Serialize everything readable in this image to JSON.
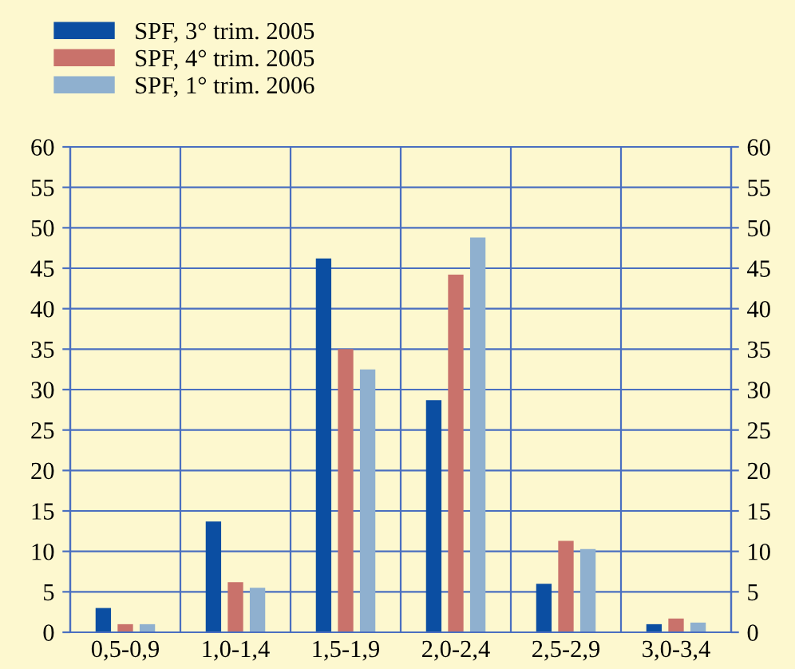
{
  "chart_data": {
    "type": "bar",
    "categories": [
      "0,5-0,9",
      "1,0-1,4",
      "1,5-1,9",
      "2,0-2,4",
      "2,5-2,9",
      "3,0-3,4"
    ],
    "series": [
      {
        "name": "SPF, 3° trim. 2005",
        "color": "#0b4ea2",
        "values": [
          3.0,
          13.7,
          46.2,
          28.7,
          6.0,
          1.0
        ]
      },
      {
        "name": "SPF, 4° trim. 2005",
        "color": "#c9726b",
        "values": [
          1.0,
          6.2,
          35.0,
          44.2,
          11.3,
          1.7
        ]
      },
      {
        "name": "SPF, 1° trim. 2006",
        "color": "#8fb0cf",
        "values": [
          1.0,
          5.5,
          32.5,
          48.8,
          10.3,
          1.2
        ]
      }
    ],
    "ylim": [
      0,
      60
    ],
    "yticks": [
      0,
      5,
      10,
      15,
      20,
      25,
      30,
      35,
      40,
      45,
      50,
      55,
      60
    ],
    "y2lim": [
      0,
      60
    ],
    "y2ticks": [
      0,
      5,
      10,
      15,
      20,
      25,
      30,
      35,
      40,
      45,
      50,
      55,
      60
    ],
    "grid": true,
    "legend": "top left"
  }
}
